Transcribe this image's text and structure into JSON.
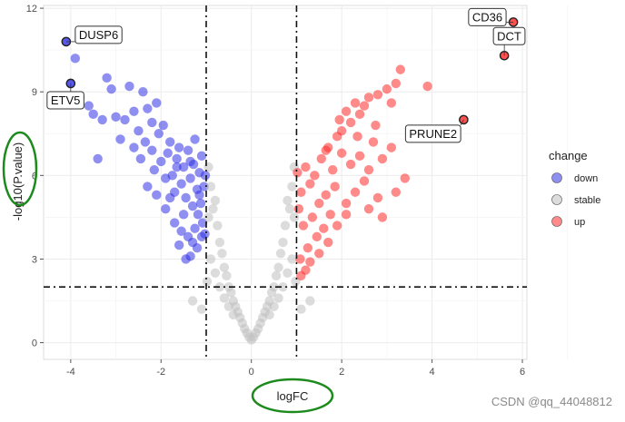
{
  "chart_data": {
    "type": "scatter",
    "title": "",
    "xlabel": "logFC",
    "ylabel": "-log10(P.value)",
    "xlim": [
      -4.6,
      6.1
    ],
    "ylim": [
      -0.6,
      12.1
    ],
    "x_ticks": [
      -4,
      -2,
      0,
      2,
      4,
      6
    ],
    "y_ticks": [
      0,
      3,
      6,
      9,
      12
    ],
    "fc_threshold": [
      -1,
      1
    ],
    "p_threshold": 2,
    "grid": true,
    "legend": {
      "title": "change",
      "placement": "right",
      "entries": [
        {
          "label": "down",
          "color": "#3333e6"
        },
        {
          "label": "stable",
          "color": "#c0c0c0"
        },
        {
          "label": "up",
          "color": "#ff2a2a"
        }
      ]
    },
    "series": [
      {
        "name": "down",
        "color": "#3333e6",
        "points": [
          [
            -4.1,
            10.8
          ],
          [
            -3.9,
            10.2
          ],
          [
            -4.0,
            9.3
          ],
          [
            -3.8,
            8.8
          ],
          [
            -3.6,
            8.5
          ],
          [
            -3.2,
            9.5
          ],
          [
            -3.1,
            9.1
          ],
          [
            -3.5,
            8.2
          ],
          [
            -3.3,
            8.0
          ],
          [
            -3.0,
            8.1
          ],
          [
            -2.7,
            9.2
          ],
          [
            -2.8,
            8.0
          ],
          [
            -2.6,
            8.3
          ],
          [
            -2.5,
            7.6
          ],
          [
            -2.4,
            9.0
          ],
          [
            -2.3,
            8.4
          ],
          [
            -2.2,
            7.9
          ],
          [
            -2.1,
            8.6
          ],
          [
            -3.4,
            6.6
          ],
          [
            -2.9,
            7.3
          ],
          [
            -2.6,
            7.0
          ],
          [
            -2.45,
            6.6
          ],
          [
            -2.35,
            7.2
          ],
          [
            -2.2,
            6.9
          ],
          [
            -2.15,
            6.2
          ],
          [
            -2.05,
            7.5
          ],
          [
            -2.0,
            6.5
          ],
          [
            -1.95,
            7.8
          ],
          [
            -1.9,
            5.9
          ],
          [
            -1.85,
            6.8
          ],
          [
            -1.8,
            7.2
          ],
          [
            -1.75,
            6.0
          ],
          [
            -1.7,
            5.4
          ],
          [
            -1.65,
            6.6
          ],
          [
            -1.6,
            7.0
          ],
          [
            -1.55,
            5.7
          ],
          [
            -1.5,
            6.3
          ],
          [
            -1.45,
            5.2
          ],
          [
            -1.4,
            6.9
          ],
          [
            -1.35,
            5.9
          ],
          [
            -1.3,
            4.9
          ],
          [
            -1.28,
            6.4
          ],
          [
            -1.25,
            7.3
          ],
          [
            -1.2,
            5.5
          ],
          [
            -1.18,
            4.6
          ],
          [
            -1.15,
            6.1
          ],
          [
            -1.12,
            5.0
          ],
          [
            -1.1,
            6.7
          ],
          [
            -1.08,
            4.3
          ],
          [
            -1.05,
            5.6
          ],
          [
            -1.03,
            3.9
          ],
          [
            -1.02,
            6.0
          ],
          [
            -1.45,
            3.0
          ],
          [
            -1.35,
            3.1
          ],
          [
            -1.6,
            3.5
          ],
          [
            -1.3,
            3.6
          ],
          [
            -2.3,
            5.6
          ],
          [
            -2.1,
            5.3
          ],
          [
            -1.9,
            4.8
          ],
          [
            -1.7,
            4.3
          ],
          [
            -1.55,
            4.0
          ],
          [
            -1.4,
            3.8
          ],
          [
            -1.2,
            3.4
          ],
          [
            -1.1,
            3.8
          ],
          [
            -1.5,
            4.6
          ],
          [
            -1.8,
            5.2
          ],
          [
            -1.25,
            4.1
          ],
          [
            -1.65,
            6.3
          ],
          [
            -1.35,
            6.5
          ],
          [
            -1.15,
            5.3
          ]
        ]
      },
      {
        "name": "stable",
        "color": "#c0c0c0",
        "points": [
          [
            -0.95,
            6.3
          ],
          [
            -0.9,
            5.6
          ],
          [
            -0.85,
            4.8
          ],
          [
            -0.8,
            5.1
          ],
          [
            -0.75,
            4.2
          ],
          [
            -0.7,
            3.6
          ],
          [
            -0.65,
            3.2
          ],
          [
            -0.6,
            2.7
          ],
          [
            -0.55,
            2.4
          ],
          [
            -0.5,
            2.0
          ],
          [
            -0.45,
            1.8
          ],
          [
            -0.4,
            1.5
          ],
          [
            -0.35,
            1.3
          ],
          [
            -0.3,
            1.1
          ],
          [
            -0.25,
            0.9
          ],
          [
            -0.2,
            0.7
          ],
          [
            -0.15,
            0.5
          ],
          [
            -0.1,
            0.35
          ],
          [
            -0.05,
            0.2
          ],
          [
            0.0,
            0.1
          ],
          [
            0.05,
            0.2
          ],
          [
            0.1,
            0.35
          ],
          [
            0.15,
            0.5
          ],
          [
            0.2,
            0.7
          ],
          [
            0.25,
            0.9
          ],
          [
            0.3,
            1.1
          ],
          [
            0.35,
            1.3
          ],
          [
            0.4,
            1.5
          ],
          [
            0.45,
            1.8
          ],
          [
            0.5,
            2.0
          ],
          [
            0.55,
            2.4
          ],
          [
            0.6,
            2.7
          ],
          [
            0.65,
            3.2
          ],
          [
            0.7,
            3.6
          ],
          [
            0.75,
            4.2
          ],
          [
            0.8,
            5.1
          ],
          [
            0.85,
            4.8
          ],
          [
            0.9,
            5.6
          ],
          [
            0.95,
            6.3
          ],
          [
            -0.9,
            3.0
          ],
          [
            -0.8,
            2.5
          ],
          [
            -0.7,
            2.0
          ],
          [
            -0.6,
            1.6
          ],
          [
            -0.5,
            1.3
          ],
          [
            -0.4,
            1.0
          ],
          [
            0.4,
            1.0
          ],
          [
            0.5,
            1.3
          ],
          [
            0.6,
            1.6
          ],
          [
            0.7,
            2.0
          ],
          [
            0.8,
            2.5
          ],
          [
            0.9,
            3.0
          ],
          [
            -0.95,
            4.5
          ],
          [
            0.95,
            4.5
          ],
          [
            -1.3,
            1.5
          ],
          [
            -1.1,
            1.2
          ],
          [
            1.1,
            1.2
          ],
          [
            1.3,
            1.5
          ],
          [
            -0.98,
            2.2
          ],
          [
            0.98,
            2.2
          ]
        ]
      },
      {
        "name": "up",
        "color": "#ff2a2a",
        "points": [
          [
            5.8,
            11.5
          ],
          [
            5.6,
            10.3
          ],
          [
            4.7,
            8.0
          ],
          [
            3.3,
            9.8
          ],
          [
            3.2,
            9.3
          ],
          [
            3.0,
            9.1
          ],
          [
            2.8,
            8.9
          ],
          [
            2.6,
            8.8
          ],
          [
            3.1,
            8.6
          ],
          [
            2.5,
            8.5
          ],
          [
            2.4,
            8.2
          ],
          [
            2.3,
            8.6
          ],
          [
            2.2,
            7.9
          ],
          [
            2.1,
            8.3
          ],
          [
            2.0,
            7.6
          ],
          [
            3.9,
            9.2
          ],
          [
            3.6,
            7.6
          ],
          [
            3.1,
            7.0
          ],
          [
            2.9,
            6.6
          ],
          [
            2.7,
            7.2
          ],
          [
            2.6,
            6.2
          ],
          [
            2.5,
            5.8
          ],
          [
            2.4,
            6.7
          ],
          [
            2.3,
            5.4
          ],
          [
            2.2,
            6.4
          ],
          [
            2.1,
            5.0
          ],
          [
            2.0,
            6.8
          ],
          [
            1.9,
            7.4
          ],
          [
            1.85,
            5.6
          ],
          [
            1.8,
            6.2
          ],
          [
            1.75,
            4.6
          ],
          [
            1.7,
            7.0
          ],
          [
            1.65,
            5.3
          ],
          [
            1.6,
            4.1
          ],
          [
            1.55,
            6.6
          ],
          [
            1.5,
            5.0
          ],
          [
            1.45,
            3.8
          ],
          [
            1.4,
            6.0
          ],
          [
            1.35,
            4.5
          ],
          [
            1.3,
            5.7
          ],
          [
            1.25,
            3.4
          ],
          [
            1.2,
            6.3
          ],
          [
            1.15,
            4.2
          ],
          [
            1.1,
            5.4
          ],
          [
            1.08,
            3.0
          ],
          [
            1.05,
            4.8
          ],
          [
            1.02,
            6.1
          ],
          [
            1.3,
            2.9
          ],
          [
            1.2,
            2.6
          ],
          [
            1.1,
            2.4
          ],
          [
            2.6,
            4.8
          ],
          [
            2.9,
            4.5
          ],
          [
            3.2,
            5.4
          ],
          [
            3.4,
            5.9
          ],
          [
            2.8,
            5.2
          ],
          [
            1.5,
            3.2
          ],
          [
            1.7,
            3.6
          ],
          [
            1.9,
            4.2
          ],
          [
            2.1,
            4.6
          ],
          [
            2.35,
            7.4
          ],
          [
            1.65,
            6.9
          ],
          [
            1.95,
            8.0
          ],
          [
            2.75,
            7.8
          ]
        ]
      }
    ],
    "labels": [
      {
        "gene": "DUSP6",
        "x": -4.1,
        "y": 10.8,
        "side": "right"
      },
      {
        "gene": "ETV5",
        "x": -4.0,
        "y": 9.3,
        "side": "below-left"
      },
      {
        "gene": "CD36",
        "x": 5.8,
        "y": 11.5,
        "side": "left"
      },
      {
        "gene": "DCT",
        "x": 5.6,
        "y": 10.3,
        "side": "above"
      },
      {
        "gene": "PRUNE2",
        "x": 4.7,
        "y": 8.0,
        "side": "below"
      }
    ]
  },
  "watermark": "CSDN @qq_44048812"
}
